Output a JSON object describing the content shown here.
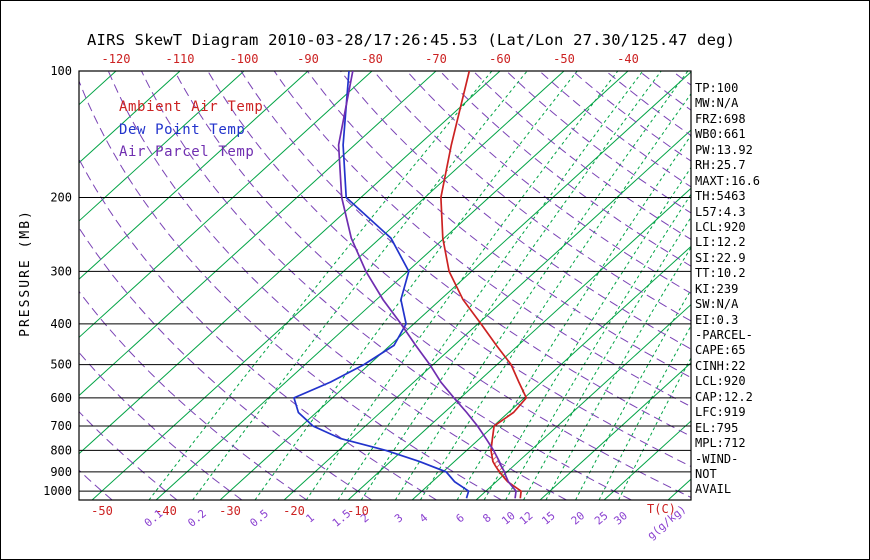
{
  "title": "AIRS SkewT Diagram 2010-03-28/17:26:45.53 (Lat/Lon 27.30/125.47 deg)",
  "stats_panel": {
    "lines": [
      "TP:100",
      "MW:N/A",
      "FRZ:698",
      "WB0:661",
      "PW:13.92",
      "RH:25.7",
      "MAXT:16.6",
      "TH:5463",
      "L57:4.3",
      "LCL:920",
      "LI:12.2",
      "SI:22.9",
      "TT:10.2",
      "KI:239",
      "SW:N/A",
      "EI:0.3",
      "-PARCEL-",
      "CAPE:65",
      "CINH:22",
      "LCL:920",
      "CAP:12.2",
      "LFC:919",
      "EL:795",
      "MPL:712",
      "-WIND-",
      "NOT",
      "AVAIL"
    ]
  },
  "chart_data": {
    "type": "line",
    "variant": "skew-t-log-p",
    "title": "AIRS SkewT Diagram 2010-03-28/17:26:45.53 (Lat/Lon 27.30/125.47 deg)",
    "axes": {
      "pressure_label": "PRESSURE (MB)",
      "pressure_unit": "MB",
      "pressure_ticks": [
        100,
        200,
        300,
        400,
        500,
        600,
        700,
        800,
        900,
        1000
      ],
      "pressure_range": [
        100,
        1050
      ],
      "top_temp_ticks": [
        -120,
        -110,
        -100,
        -90,
        -80,
        -70,
        -60,
        -50,
        -40
      ],
      "bottom_temp_ticks": [
        -50,
        -40,
        -30,
        -20,
        -10
      ],
      "temp_unit": "T(C)",
      "isotherm_step": 10,
      "mixing_ratio_ticks": [
        0.1,
        0.2,
        0.5,
        1,
        1.5,
        2,
        3,
        4,
        6,
        8,
        10,
        12,
        15,
        20,
        25,
        30
      ],
      "mixing_ratio_unit": "g(g/kg)"
    },
    "legend": [
      {
        "id": "ambient",
        "label": "Ambient Air Temp",
        "color": "#cc2222"
      },
      {
        "id": "dewpoint",
        "label": "Dew Point Temp",
        "color": "#2233cc"
      },
      {
        "id": "parcel",
        "label": "Air Parcel Temp",
        "color": "#6f2db0"
      }
    ],
    "colors": {
      "isotherm": "#00a345",
      "mixing": "#00a345",
      "adiabat": "#7a42b5",
      "pressure_line": "#000000",
      "ambient": "#cc2222",
      "dewpoint": "#2233cc",
      "parcel": "#6f2db0",
      "hatch": "#cc2222",
      "mixing_label": "#8a3fd0"
    },
    "series": [
      {
        "id": "ambient",
        "name": "Ambient Air Temp",
        "color": "#cc2222",
        "units": {
          "p": "mb",
          "t": "degC"
        },
        "points": [
          [
            1040,
            16.6
          ],
          [
            1000,
            15.5
          ],
          [
            950,
            11.8
          ],
          [
            935,
            10.9
          ],
          [
            900,
            8.8
          ],
          [
            870,
            7.1
          ],
          [
            850,
            6.0
          ],
          [
            800,
            3.8
          ],
          [
            750,
            2.0
          ],
          [
            700,
            0.1
          ],
          [
            650,
            0.8
          ],
          [
            600,
            0.3
          ],
          [
            550,
            -3.6
          ],
          [
            500,
            -7.8
          ],
          [
            450,
            -13.4
          ],
          [
            400,
            -19.5
          ],
          [
            350,
            -26.5
          ],
          [
            300,
            -33.5
          ],
          [
            250,
            -40.2
          ],
          [
            200,
            -47.5
          ],
          [
            150,
            -54.9
          ],
          [
            100,
            -64.8
          ]
        ]
      },
      {
        "id": "dewpoint",
        "name": "Dew Point Temp",
        "color": "#2233cc",
        "units": {
          "p": "mb",
          "t": "degC"
        },
        "points": [
          [
            1040,
            8.2
          ],
          [
            1000,
            7.3
          ],
          [
            950,
            3.5
          ],
          [
            900,
            0.5
          ],
          [
            850,
            -5.5
          ],
          [
            800,
            -12.6
          ],
          [
            750,
            -21.7
          ],
          [
            700,
            -28.2
          ],
          [
            650,
            -32.8
          ],
          [
            600,
            -36.0
          ],
          [
            550,
            -33.0
          ],
          [
            500,
            -30.8
          ],
          [
            450,
            -29.4
          ],
          [
            400,
            -31.2
          ],
          [
            350,
            -36.2
          ],
          [
            300,
            -39.8
          ],
          [
            250,
            -48.3
          ],
          [
            200,
            -62.3
          ],
          [
            150,
            -71.8
          ],
          [
            100,
            -83.6
          ]
        ]
      },
      {
        "id": "parcel",
        "name": "Air Parcel Temp",
        "color": "#6f2db0",
        "units": {
          "p": "mb",
          "t": "degC"
        },
        "points": [
          [
            1040,
            15.8
          ],
          [
            1000,
            14.7
          ],
          [
            950,
            11.9
          ],
          [
            935,
            11.2
          ],
          [
            920,
            10.5
          ],
          [
            900,
            9.6
          ],
          [
            870,
            8.0
          ],
          [
            850,
            7.0
          ],
          [
            800,
            4.2
          ],
          [
            750,
            1.0
          ],
          [
            700,
            -2.5
          ],
          [
            650,
            -6.5
          ],
          [
            600,
            -11.0
          ],
          [
            550,
            -15.8
          ],
          [
            500,
            -20.5
          ],
          [
            450,
            -26.0
          ],
          [
            400,
            -32.0
          ],
          [
            350,
            -39.0
          ],
          [
            300,
            -46.5
          ],
          [
            250,
            -54.5
          ],
          [
            200,
            -63.0
          ],
          [
            150,
            -72.5
          ],
          [
            100,
            -83.0
          ]
        ]
      }
    ],
    "cape_region": [
      [
        940,
        11.4
      ],
      [
        920,
        10.5
      ],
      [
        900,
        9.6
      ],
      [
        870,
        8.0
      ],
      [
        850,
        7.0
      ],
      [
        800,
        4.2
      ],
      [
        785,
        3.3
      ],
      [
        800,
        3.8
      ],
      [
        850,
        6.0
      ],
      [
        870,
        7.1
      ],
      [
        900,
        8.8
      ],
      [
        920,
        10.0
      ]
    ]
  }
}
